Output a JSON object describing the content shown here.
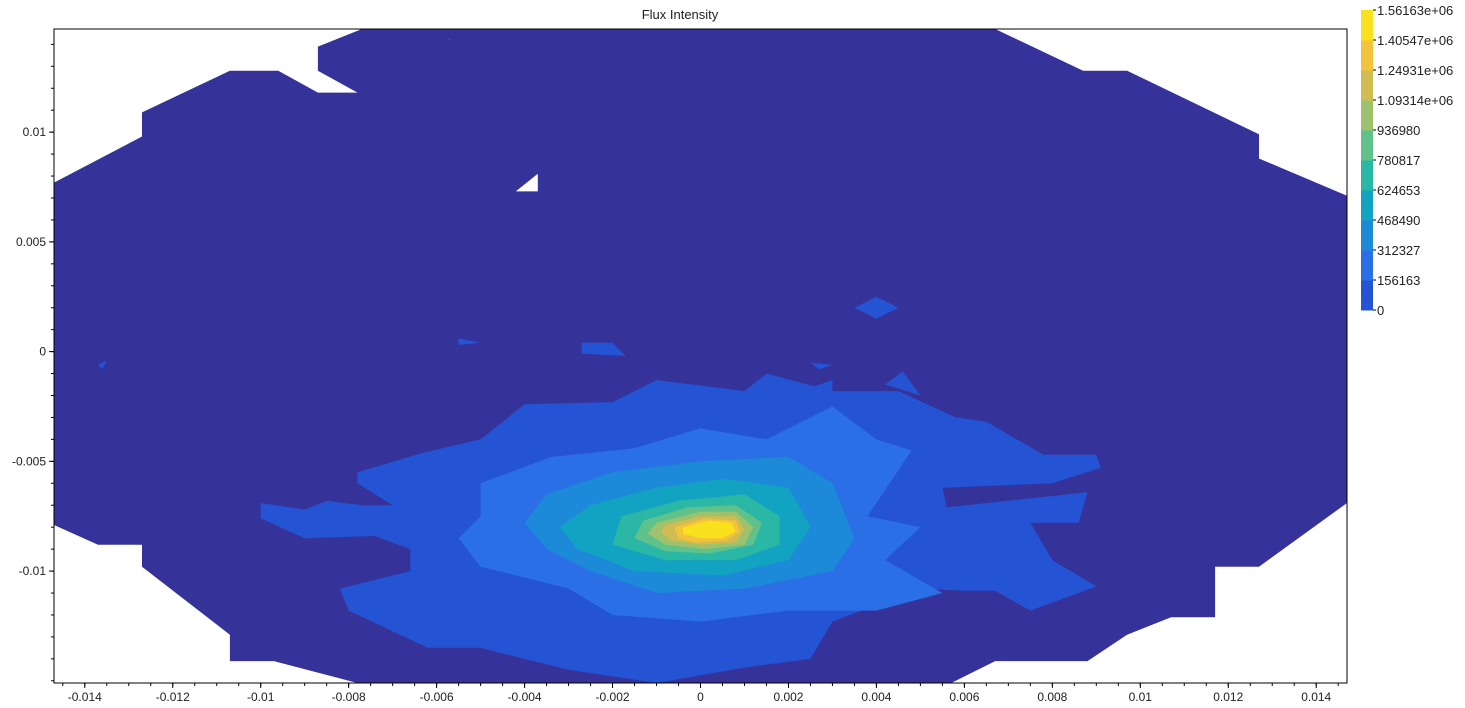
{
  "chart_data": {
    "type": "heatmap",
    "title": "Flux Intensity",
    "xlabel": "",
    "ylabel": "",
    "xlim": [
      -0.0147,
      0.0147
    ],
    "ylim": [
      -0.0151,
      0.0147
    ],
    "x_ticks": [
      -0.014,
      -0.012,
      -0.01,
      -0.008,
      -0.006,
      -0.004,
      -0.002,
      0,
      0.002,
      0.004,
      0.006,
      0.008,
      0.01,
      0.012,
      0.014
    ],
    "x_tick_labels": [
      "-0.014",
      "-0.012",
      "-0.01",
      "-0.008",
      "-0.006",
      "-0.004",
      "-0.002",
      "0",
      "0.002",
      "0.004",
      "0.006",
      "0.008",
      "0.01",
      "0.012",
      "0.014"
    ],
    "y_ticks": [
      0.01,
      0.005,
      0,
      -0.005,
      -0.01
    ],
    "y_tick_labels": [
      "0.01",
      "0.005",
      "0",
      "-0.005",
      "-0.01"
    ],
    "grid": false,
    "colorbar": {
      "position": "right",
      "min": 0,
      "max": 1561630,
      "levels": [
        0,
        156163,
        312327,
        468490,
        624653,
        780817,
        936980,
        1093140,
        1249310,
        1405470,
        1561630
      ],
      "labels": [
        "0",
        "156163",
        "312327",
        "468490",
        "624653",
        "780817",
        "936980",
        "1.09314e+06",
        "1.24931e+06",
        "1.40547e+06",
        "1.56163e+06"
      ],
      "colors": [
        "#35339a",
        "#2453d4",
        "#2a6fe6",
        "#1c8ad8",
        "#13a3c2",
        "#2bb7a6",
        "#61c18a",
        "#9ec26c",
        "#d0bc52",
        "#f3c33a",
        "#f9e11e"
      ]
    },
    "intensity_field": {
      "peak_x": 0.0001,
      "peak_y": -0.0079,
      "peak_value": 1561630,
      "outer_boundary": [
        [
          -0.0147,
          0.0077
        ],
        [
          -0.0127,
          0.0098
        ],
        [
          -0.0127,
          0.0109
        ],
        [
          -0.0107,
          0.0128
        ],
        [
          -0.0096,
          0.0128
        ],
        [
          -0.0087,
          0.0118
        ],
        [
          -0.0078,
          0.0118
        ],
        [
          -0.0087,
          0.0128
        ],
        [
          -0.0087,
          0.0139
        ],
        [
          -0.0077,
          0.0147
        ],
        [
          -0.0067,
          0.0147
        ],
        [
          -0.0067,
          0.0147
        ],
        [
          -0.0057,
          0.0142
        ],
        [
          -0.0067,
          0.0147
        ],
        [
          -0.0044,
          0.0147
        ],
        [
          0.0067,
          0.0147
        ],
        [
          0.0087,
          0.0128
        ],
        [
          0.0097,
          0.0128
        ],
        [
          0.0127,
          0.0099
        ],
        [
          0.0127,
          0.0088
        ],
        [
          0.0147,
          0.0071
        ],
        [
          0.0147,
          -0.0069
        ],
        [
          0.0127,
          -0.0098
        ],
        [
          0.0117,
          -0.0098
        ],
        [
          0.0117,
          -0.0121
        ],
        [
          0.0107,
          -0.0121
        ],
        [
          0.0097,
          -0.0129
        ],
        [
          0.0088,
          -0.0141
        ],
        [
          0.0067,
          -0.0141
        ],
        [
          0.0057,
          -0.0151
        ],
        [
          -0.0078,
          -0.0151
        ],
        [
          -0.0097,
          -0.0141
        ],
        [
          -0.0107,
          -0.0141
        ],
        [
          -0.0107,
          -0.0129
        ],
        [
          -0.0127,
          -0.0098
        ],
        [
          -0.0127,
          -0.0088
        ],
        [
          -0.0137,
          -0.0088
        ],
        [
          -0.0147,
          -0.0079
        ]
      ],
      "notch_near_top": [
        [
          -0.0037,
          0.0073
        ],
        [
          -0.0042,
          0.0073
        ],
        [
          -0.0037,
          0.0081
        ]
      ],
      "bands": [
        [
          [
            -0.0078,
            -0.0055
          ],
          [
            -0.0063,
            -0.0046
          ],
          [
            -0.005,
            -0.004
          ],
          [
            -0.004,
            -0.0024
          ],
          [
            -0.002,
            -0.0023
          ],
          [
            -0.001,
            -0.0013
          ],
          [
            0.001,
            -0.0018
          ],
          [
            0.0015,
            -0.001
          ],
          [
            0.003,
            -0.0018
          ],
          [
            0.0045,
            -0.0018
          ],
          [
            0.0058,
            -0.003
          ],
          [
            0.0065,
            -0.0032
          ],
          [
            0.0078,
            -0.0047
          ],
          [
            0.009,
            -0.0047
          ],
          [
            0.0091,
            -0.0053
          ],
          [
            0.008,
            -0.006
          ],
          [
            0.0055,
            -0.0062
          ],
          [
            0.0056,
            -0.0071
          ],
          [
            0.0088,
            -0.0064
          ],
          [
            0.0086,
            -0.0078
          ],
          [
            0.0075,
            -0.0078
          ],
          [
            0.008,
            -0.0095
          ],
          [
            0.009,
            -0.0107
          ],
          [
            0.0075,
            -0.0118
          ],
          [
            0.0067,
            -0.0109
          ],
          [
            0.006,
            -0.0109
          ],
          [
            0.005,
            -0.0108
          ],
          [
            0.003,
            -0.0123
          ],
          [
            0.0025,
            -0.014
          ],
          [
            0.001,
            -0.0144
          ],
          [
            -0.001,
            -0.0151
          ],
          [
            -0.003,
            -0.0145
          ],
          [
            -0.004,
            -0.014
          ],
          [
            -0.005,
            -0.0135
          ],
          [
            -0.0062,
            -0.0135
          ],
          [
            -0.008,
            -0.0118
          ],
          [
            -0.0082,
            -0.0108
          ],
          [
            -0.0066,
            -0.01
          ],
          [
            -0.0066,
            -0.009
          ],
          [
            -0.0074,
            -0.0084
          ],
          [
            -0.009,
            -0.0085
          ],
          [
            -0.01,
            -0.0076
          ],
          [
            -0.01,
            -0.0069
          ],
          [
            -0.009,
            -0.0072
          ],
          [
            -0.0085,
            -0.0068
          ],
          [
            -0.0077,
            -0.007
          ],
          [
            -0.007,
            -0.007
          ],
          [
            -0.0078,
            -0.006
          ]
        ],
        [
          [
            -0.005,
            -0.006
          ],
          [
            -0.0034,
            -0.0048
          ],
          [
            -0.0015,
            -0.0044
          ],
          [
            0.0,
            -0.0035
          ],
          [
            0.0015,
            -0.004
          ],
          [
            0.003,
            -0.0025
          ],
          [
            0.004,
            -0.004
          ],
          [
            0.0048,
            -0.0045
          ],
          [
            0.0038,
            -0.0075
          ],
          [
            0.005,
            -0.008
          ],
          [
            0.0042,
            -0.0095
          ],
          [
            0.0055,
            -0.011
          ],
          [
            0.004,
            -0.0118
          ],
          [
            0.002,
            -0.0118
          ],
          [
            0.0,
            -0.0123
          ],
          [
            -0.002,
            -0.012
          ],
          [
            -0.003,
            -0.0108
          ],
          [
            -0.005,
            -0.0098
          ],
          [
            -0.0055,
            -0.0085
          ],
          [
            -0.005,
            -0.0075
          ]
        ],
        [
          [
            -0.0035,
            -0.0065
          ],
          [
            -0.002,
            -0.0055
          ],
          [
            0.0,
            -0.005
          ],
          [
            0.002,
            -0.0048
          ],
          [
            0.003,
            -0.006
          ],
          [
            0.0035,
            -0.0085
          ],
          [
            0.003,
            -0.01
          ],
          [
            0.001,
            -0.0108
          ],
          [
            -0.001,
            -0.011
          ],
          [
            -0.0025,
            -0.01
          ],
          [
            -0.0035,
            -0.009
          ],
          [
            -0.004,
            -0.0078
          ]
        ],
        [
          [
            -0.0025,
            -0.007
          ],
          [
            -0.001,
            -0.0062
          ],
          [
            0.0005,
            -0.0058
          ],
          [
            0.002,
            -0.0062
          ],
          [
            0.0025,
            -0.008
          ],
          [
            0.002,
            -0.0095
          ],
          [
            0.0005,
            -0.0102
          ],
          [
            -0.0015,
            -0.01
          ],
          [
            -0.0028,
            -0.009
          ],
          [
            -0.0032,
            -0.008
          ]
        ],
        [
          [
            -0.0018,
            -0.0075
          ],
          [
            -0.0005,
            -0.0068
          ],
          [
            0.001,
            -0.0065
          ],
          [
            0.0018,
            -0.0075
          ],
          [
            0.0018,
            -0.0088
          ],
          [
            0.0008,
            -0.0095
          ],
          [
            -0.0008,
            -0.0095
          ],
          [
            -0.002,
            -0.0088
          ]
        ],
        [
          [
            -0.0013,
            -0.0077
          ],
          [
            -0.0003,
            -0.0071
          ],
          [
            0.0008,
            -0.007
          ],
          [
            0.0014,
            -0.0078
          ],
          [
            0.0012,
            -0.0088
          ],
          [
            0.0002,
            -0.0092
          ],
          [
            -0.0008,
            -0.0091
          ],
          [
            -0.0015,
            -0.0085
          ]
        ],
        [
          [
            -0.001,
            -0.0078
          ],
          [
            0.0,
            -0.0073
          ],
          [
            0.0008,
            -0.0073
          ],
          [
            0.0012,
            -0.008
          ],
          [
            0.001,
            -0.0088
          ],
          [
            0.0001,
            -0.009
          ],
          [
            -0.0008,
            -0.0088
          ],
          [
            -0.0012,
            -0.0083
          ]
        ],
        [
          [
            -0.0008,
            -0.0079
          ],
          [
            0.0,
            -0.0075
          ],
          [
            0.0008,
            -0.0075
          ],
          [
            0.001,
            -0.0081
          ],
          [
            0.0008,
            -0.0087
          ],
          [
            0.0,
            -0.0088
          ],
          [
            -0.0007,
            -0.0086
          ],
          [
            -0.0009,
            -0.0082
          ]
        ],
        [
          [
            -0.0006,
            -0.008
          ],
          [
            0.0001,
            -0.0076
          ],
          [
            0.0008,
            -0.0077
          ],
          [
            0.0009,
            -0.0082
          ],
          [
            0.0006,
            -0.0086
          ],
          [
            -0.0001,
            -0.0087
          ],
          [
            -0.0005,
            -0.0085
          ]
        ],
        [
          [
            -0.0004,
            -0.008
          ],
          [
            0.0002,
            -0.0077
          ],
          [
            0.0007,
            -0.0078
          ],
          [
            0.0008,
            -0.0082
          ],
          [
            0.0005,
            -0.0085
          ],
          [
            0.0,
            -0.0085
          ],
          [
            -0.0004,
            -0.0083
          ]
        ]
      ],
      "islands": [
        [
          [
            0.002,
            -0.002
          ],
          [
            0.003,
            -0.0013
          ],
          [
            0.003,
            -0.0023
          ]
        ],
        [
          [
            0.0035,
            0.002
          ],
          [
            0.004,
            0.0025
          ],
          [
            0.0045,
            0.002
          ],
          [
            0.004,
            0.0015
          ]
        ],
        [
          [
            -0.0027,
            0.0004
          ],
          [
            -0.002,
            0.0004
          ],
          [
            -0.0017,
            -0.0002
          ],
          [
            -0.0027,
            -0.0001
          ]
        ],
        [
          [
            -0.0055,
            0.0006
          ],
          [
            -0.005,
            0.0004
          ],
          [
            -0.0055,
            0.0003
          ]
        ],
        [
          [
            -0.0137,
            -0.0006
          ],
          [
            -0.0135,
            -0.0004
          ],
          [
            -0.0136,
            -0.0008
          ]
        ],
        [
          [
            0.0042,
            -0.0015
          ],
          [
            0.005,
            -0.002
          ],
          [
            0.0046,
            -0.0009
          ]
        ],
        [
          [
            0.0025,
            -0.0005
          ],
          [
            0.0027,
            -0.0008
          ],
          [
            0.003,
            -0.0006
          ]
        ]
      ]
    }
  }
}
